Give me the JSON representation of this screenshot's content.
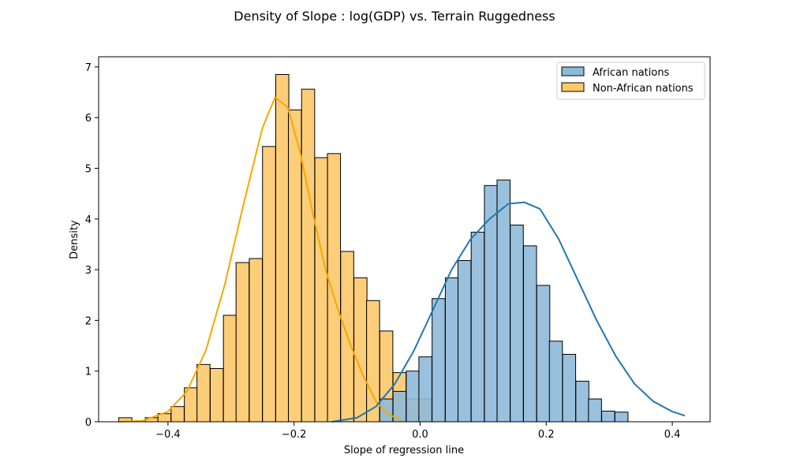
{
  "chart_data": {
    "type": "histogram",
    "title": "Density of Slope : log(GDP) vs. Terrain Ruggedness",
    "xlabel": "Slope of regression line",
    "ylabel": "Density",
    "xlim": [
      -0.51,
      0.46
    ],
    "ylim": [
      0,
      7.2
    ],
    "xticks": [
      -0.4,
      -0.2,
      0.0,
      0.2,
      0.4
    ],
    "xtick_labels": [
      "−0.4",
      "−0.2",
      "0.0",
      "0.2",
      "0.4"
    ],
    "yticks": [
      0,
      1,
      2,
      3,
      4,
      5,
      6,
      7
    ],
    "ytick_labels": [
      "0",
      "1",
      "2",
      "3",
      "4",
      "5",
      "6",
      "7"
    ],
    "legend_position": "upper right",
    "series": [
      {
        "name": "Non-African nations",
        "color": "#f5a800",
        "fill": "#fdc96a",
        "bin_width": 0.0207,
        "bins": [
          {
            "x0": -0.478,
            "y": 0.08
          },
          {
            "x0": -0.457,
            "y": 0.0
          },
          {
            "x0": -0.436,
            "y": 0.08
          },
          {
            "x0": -0.416,
            "y": 0.16
          },
          {
            "x0": -0.395,
            "y": 0.3
          },
          {
            "x0": -0.374,
            "y": 0.67
          },
          {
            "x0": -0.354,
            "y": 1.13
          },
          {
            "x0": -0.333,
            "y": 1.05
          },
          {
            "x0": -0.312,
            "y": 2.1
          },
          {
            "x0": -0.292,
            "y": 3.14
          },
          {
            "x0": -0.271,
            "y": 3.22
          },
          {
            "x0": -0.25,
            "y": 5.43
          },
          {
            "x0": -0.229,
            "y": 6.85
          },
          {
            "x0": -0.209,
            "y": 6.15
          },
          {
            "x0": -0.188,
            "y": 6.56
          },
          {
            "x0": -0.167,
            "y": 5.21
          },
          {
            "x0": -0.147,
            "y": 5.29
          },
          {
            "x0": -0.126,
            "y": 3.36
          },
          {
            "x0": -0.105,
            "y": 2.84
          },
          {
            "x0": -0.085,
            "y": 2.39
          },
          {
            "x0": -0.064,
            "y": 1.79
          },
          {
            "x0": -0.043,
            "y": 0.97
          },
          {
            "x0": -0.022,
            "y": 0.45
          },
          {
            "x0": -0.002,
            "y": 0.45
          }
        ],
        "kde": [
          [
            -0.48,
            0.0
          ],
          [
            -0.44,
            0.02
          ],
          [
            -0.4,
            0.2
          ],
          [
            -0.37,
            0.6
          ],
          [
            -0.34,
            1.4
          ],
          [
            -0.31,
            2.7
          ],
          [
            -0.28,
            4.3
          ],
          [
            -0.25,
            5.8
          ],
          [
            -0.23,
            6.4
          ],
          [
            -0.21,
            6.2
          ],
          [
            -0.19,
            5.3
          ],
          [
            -0.17,
            4.1
          ],
          [
            -0.15,
            3.0
          ],
          [
            -0.13,
            2.2
          ],
          [
            -0.11,
            1.5
          ],
          [
            -0.09,
            0.9
          ],
          [
            -0.07,
            0.4
          ],
          [
            -0.05,
            0.15
          ],
          [
            -0.03,
            0.03
          ]
        ]
      },
      {
        "name": "African nations",
        "color": "#1f77b4",
        "fill": "#8ebad9",
        "bin_width": 0.0207,
        "bins": [
          {
            "x0": -0.064,
            "y": 0.45
          },
          {
            "x0": -0.043,
            "y": 0.6
          },
          {
            "x0": -0.022,
            "y": 1.0
          },
          {
            "x0": -0.002,
            "y": 1.28
          },
          {
            "x0": 0.019,
            "y": 2.43
          },
          {
            "x0": 0.04,
            "y": 2.84
          },
          {
            "x0": 0.06,
            "y": 3.18
          },
          {
            "x0": 0.081,
            "y": 3.74
          },
          {
            "x0": 0.102,
            "y": 4.66
          },
          {
            "x0": 0.122,
            "y": 4.77
          },
          {
            "x0": 0.143,
            "y": 3.88
          },
          {
            "x0": 0.164,
            "y": 3.47
          },
          {
            "x0": 0.185,
            "y": 2.69
          },
          {
            "x0": 0.205,
            "y": 1.59
          },
          {
            "x0": 0.226,
            "y": 1.33
          },
          {
            "x0": 0.247,
            "y": 0.8
          },
          {
            "x0": 0.267,
            "y": 0.45
          },
          {
            "x0": 0.288,
            "y": 0.21
          },
          {
            "x0": 0.309,
            "y": 0.19
          }
        ],
        "kde": [
          [
            -0.14,
            0.0
          ],
          [
            -0.1,
            0.08
          ],
          [
            -0.07,
            0.3
          ],
          [
            -0.04,
            0.75
          ],
          [
            -0.01,
            1.4
          ],
          [
            0.02,
            2.2
          ],
          [
            0.05,
            3.0
          ],
          [
            0.08,
            3.6
          ],
          [
            0.11,
            4.0
          ],
          [
            0.14,
            4.3
          ],
          [
            0.165,
            4.33
          ],
          [
            0.19,
            4.2
          ],
          [
            0.22,
            3.6
          ],
          [
            0.25,
            2.8
          ],
          [
            0.28,
            2.0
          ],
          [
            0.31,
            1.3
          ],
          [
            0.34,
            0.75
          ],
          [
            0.37,
            0.4
          ],
          [
            0.4,
            0.2
          ],
          [
            0.42,
            0.12
          ]
        ]
      }
    ]
  }
}
